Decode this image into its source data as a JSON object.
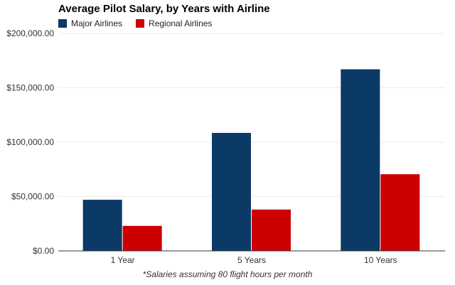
{
  "chart_data": {
    "type": "bar",
    "title": "Average Pilot Salary, by Years with Airline",
    "categories": [
      "1 Year",
      "5 Years",
      "10 Years"
    ],
    "series": [
      {
        "name": "Major Airlines",
        "color": "#0b3a66",
        "values": [
          47000,
          108500,
          167000
        ]
      },
      {
        "name": "Regional Airlines",
        "color": "#cc0000",
        "values": [
          23000,
          38000,
          70500
        ]
      }
    ],
    "ylim": [
      0,
      200000
    ],
    "yticks": [
      0,
      50000,
      100000,
      150000,
      200000
    ],
    "ytick_labels": [
      "$0.00",
      "$50,000.00",
      "$100,000.00",
      "$150,000.00",
      "$200,000.00"
    ],
    "legend_position": "top-left",
    "footnote": "*Salaries assuming 80 flight hours per month"
  }
}
